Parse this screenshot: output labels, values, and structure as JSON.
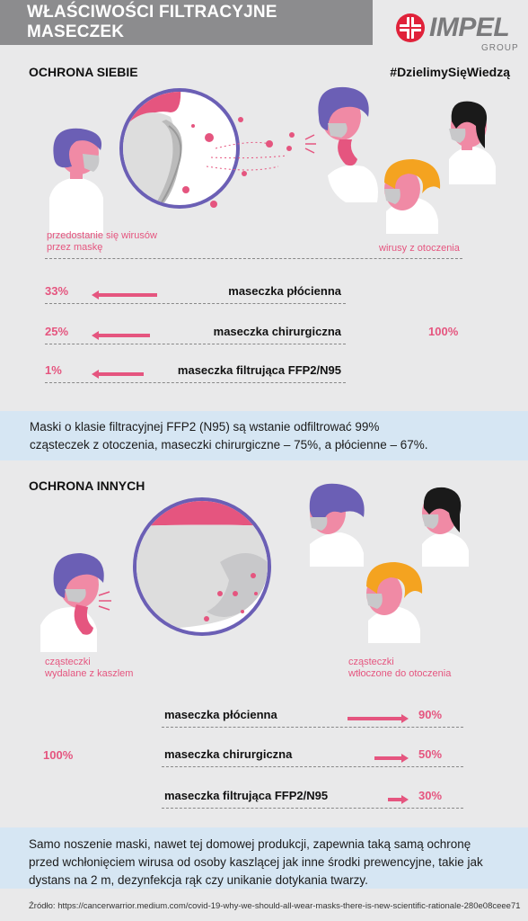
{
  "header": {
    "title": "WŁAŚCIWOŚCI FILTRACYJNE  MASECZEK",
    "logo_name": "IMPEL",
    "logo_sub": "GROUP",
    "logo_icon": "impel-cross-logo"
  },
  "section1": {
    "heading": "OCHRONA SIEBIE",
    "hashtag": "#DzielimySięWiedzą",
    "left_caption_line1": "przedostanie się wirusów",
    "left_caption_line2": "przez maskę",
    "right_caption": "wirusy z otoczenia",
    "total_percent": "100%",
    "rows": [
      {
        "percent": "33%",
        "label": "maseczka płócienna",
        "fill": 0.33
      },
      {
        "percent": "25%",
        "label": "maseczka chirurgiczna",
        "fill": 0.25
      },
      {
        "percent": "1%",
        "label": "maseczka filtrująca FFP2/N95",
        "fill": 0.01
      }
    ]
  },
  "info1": {
    "line1": "Maski o klasie filtracyjnej FFP2 (N95) są wstanie odfiltrować 99%",
    "line2": "cząsteczek z otoczenia, maseczki chirurgiczne – 75%, a płócienne – 67%."
  },
  "section2": {
    "heading": "OCHRONA INNYCH",
    "left_caption_line1": "cząsteczki",
    "left_caption_line2": "wydalane z kaszlem",
    "right_caption_line1": "cząsteczki",
    "right_caption_line2": "wtłoczone do otoczenia",
    "total_percent": "100%",
    "rows": [
      {
        "percent": "90%",
        "label": "maseczka płócienna",
        "fill": 0.9
      },
      {
        "percent": "50%",
        "label": "maseczka chirurgiczna",
        "fill": 0.5
      },
      {
        "percent": "30%",
        "label": "maseczka filtrująca FFP2/N95",
        "fill": 0.3
      }
    ]
  },
  "info2": {
    "line1": "Samo noszenie maski, nawet tej domowej produkcji, zapewnia taką samą ochronę",
    "line2": "przed wchłonięciem wirusa od osoby kaszlącej jak inne środki prewencyjne, takie jak",
    "line3": "dystans na 2 m, dezynfekcja rąk czy unikanie dotykania twarzy."
  },
  "source": "Źródło: https://cancerwarrior.medium.com/covid-19-why-we-should-all-wear-masks-there-is-new-scientific-rationale-280e08ceee71",
  "colors": {
    "pink": "#e5557f",
    "purple": "#6b5fb5",
    "orange": "#f4a320",
    "black_hair": "#1a1a1a",
    "mask_gray": "#c8c8ca",
    "title_gray": "#8c8c8e",
    "info_blue": "#d6e6f3"
  }
}
